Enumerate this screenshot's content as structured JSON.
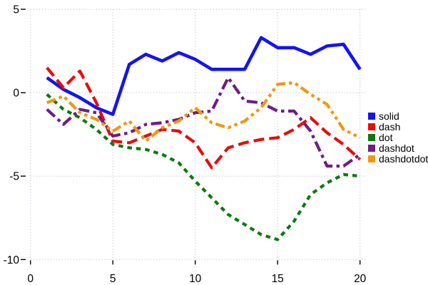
{
  "chart_data": {
    "type": "line",
    "title": "",
    "xlabel": "",
    "ylabel": "",
    "x": [
      1,
      2,
      3,
      4,
      5,
      6,
      7,
      8,
      9,
      10,
      11,
      12,
      13,
      14,
      15,
      16,
      17,
      18,
      19,
      20
    ],
    "series": [
      {
        "name": "solid",
        "line_style": "solid",
        "color": "#1414ee",
        "values": [
          0.9,
          0.2,
          -0.3,
          -0.9,
          -1.3,
          1.7,
          2.3,
          1.9,
          2.4,
          2.0,
          1.4,
          1.4,
          1.4,
          3.3,
          2.7,
          2.7,
          2.3,
          2.8,
          2.9,
          1.4
        ]
      },
      {
        "name": "dash",
        "line_style": "dash",
        "color": "#e60d0d",
        "values": [
          1.5,
          0.3,
          1.3,
          -0.6,
          -2.9,
          -3.0,
          -2.6,
          -2.2,
          -2.3,
          -3.0,
          -4.5,
          -3.3,
          -3.0,
          -2.8,
          -2.7,
          -2.2,
          -1.5,
          -2.4,
          -3.1,
          -4.0
        ]
      },
      {
        "name": "dot",
        "line_style": "dot",
        "color": "#0d7a0d",
        "values": [
          -0.1,
          -1.0,
          -1.5,
          -2.2,
          -3.1,
          -3.3,
          -3.4,
          -3.7,
          -4.2,
          -5.3,
          -6.3,
          -7.3,
          -7.9,
          -8.5,
          -8.8,
          -7.7,
          -6.1,
          -5.4,
          -4.9,
          -5.0
        ]
      },
      {
        "name": "dashdot",
        "line_style": "dashdot",
        "color": "#6e1c86",
        "values": [
          -1.0,
          -1.9,
          -1.0,
          -1.2,
          -2.6,
          -2.4,
          -1.9,
          -1.8,
          -1.6,
          -1.2,
          -1.1,
          0.9,
          -0.5,
          -0.6,
          -1.1,
          -1.1,
          -2.3,
          -4.4,
          -4.4,
          -3.7
        ]
      },
      {
        "name": "dashdotdot",
        "line_style": "dashdotdot",
        "color": "#ef980f",
        "values": [
          -0.6,
          -0.2,
          -1.2,
          -1.6,
          -2.3,
          -1.7,
          -2.9,
          -2.1,
          -1.7,
          -0.9,
          -1.8,
          -2.1,
          -1.7,
          -0.9,
          0.5,
          0.6,
          -0.1,
          -0.7,
          -2.2,
          -2.7
        ]
      }
    ],
    "x_ticks": [
      0,
      5,
      10,
      15,
      20
    ],
    "y_ticks": [
      5,
      0,
      -5,
      -10
    ],
    "xlim": [
      0,
      20
    ],
    "ylim": [
      -10,
      5
    ],
    "grid": "dotted",
    "grid_color": "#c9c9da",
    "tick_color": "#000000",
    "legend_position": "right",
    "legend_labels": [
      "solid",
      "dash",
      "dot",
      "dashdot",
      "dashdotdot"
    ]
  }
}
